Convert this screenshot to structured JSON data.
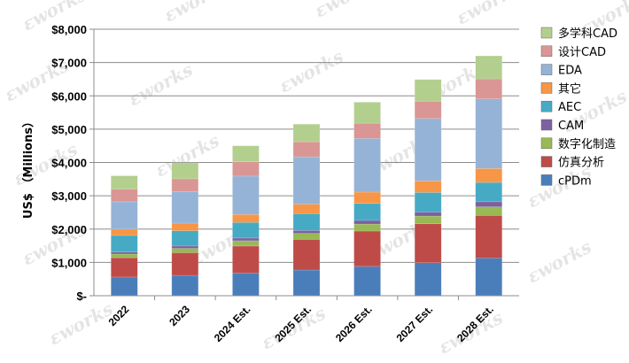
{
  "chart_data": {
    "type": "bar",
    "stacked": true,
    "categories": [
      "2022",
      "2023",
      "2024 Est.",
      "2025 Est.",
      "2026 Est.",
      "2027 Est.",
      "2028 Est."
    ],
    "ylabel": "US$ （Millions）",
    "ylim": [
      0,
      8000
    ],
    "yticks": [
      "$-",
      "$1,000",
      "$2,000",
      "$3,000",
      "$4,000",
      "$5,000",
      "$6,000",
      "$7,000",
      "$8,000"
    ],
    "grid": true,
    "legend_position": "right",
    "series": [
      {
        "name": "cPDm",
        "color": "#4a7ebb",
        "values": [
          560,
          610,
          680,
          770,
          880,
          990,
          1130
        ]
      },
      {
        "name": "仿真分析",
        "color": "#be4b48",
        "values": [
          580,
          680,
          810,
          920,
          1060,
          1170,
          1280
        ]
      },
      {
        "name": "数字化制造",
        "color": "#98b954",
        "values": [
          110,
          130,
          160,
          180,
          210,
          230,
          260
        ]
      },
      {
        "name": "CAM",
        "color": "#7d60a0",
        "values": [
          60,
          70,
          80,
          90,
          110,
          120,
          150
        ]
      },
      {
        "name": "AEC",
        "color": "#46aac4",
        "values": [
          500,
          460,
          470,
          500,
          510,
          590,
          580
        ]
      },
      {
        "name": "其它",
        "color": "#f79646",
        "values": [
          190,
          230,
          240,
          290,
          340,
          350,
          420
        ]
      },
      {
        "name": "EDA",
        "color": "#95b3d7",
        "values": [
          820,
          950,
          1150,
          1420,
          1610,
          1870,
          2090
        ]
      },
      {
        "name": "设计CAD",
        "color": "#d99694",
        "values": [
          380,
          380,
          430,
          450,
          460,
          520,
          600
        ]
      },
      {
        "name": "多学科CAD",
        "color": "#b3cf8d",
        "values": [
          400,
          480,
          480,
          530,
          630,
          650,
          690
        ]
      }
    ]
  },
  "watermark": "works",
  "legend_order": [
    "多学科CAD",
    "设计CAD",
    "EDA",
    "其它",
    "AEC",
    "CAM",
    "数字化制造",
    "仿真分析",
    "cPDm"
  ]
}
